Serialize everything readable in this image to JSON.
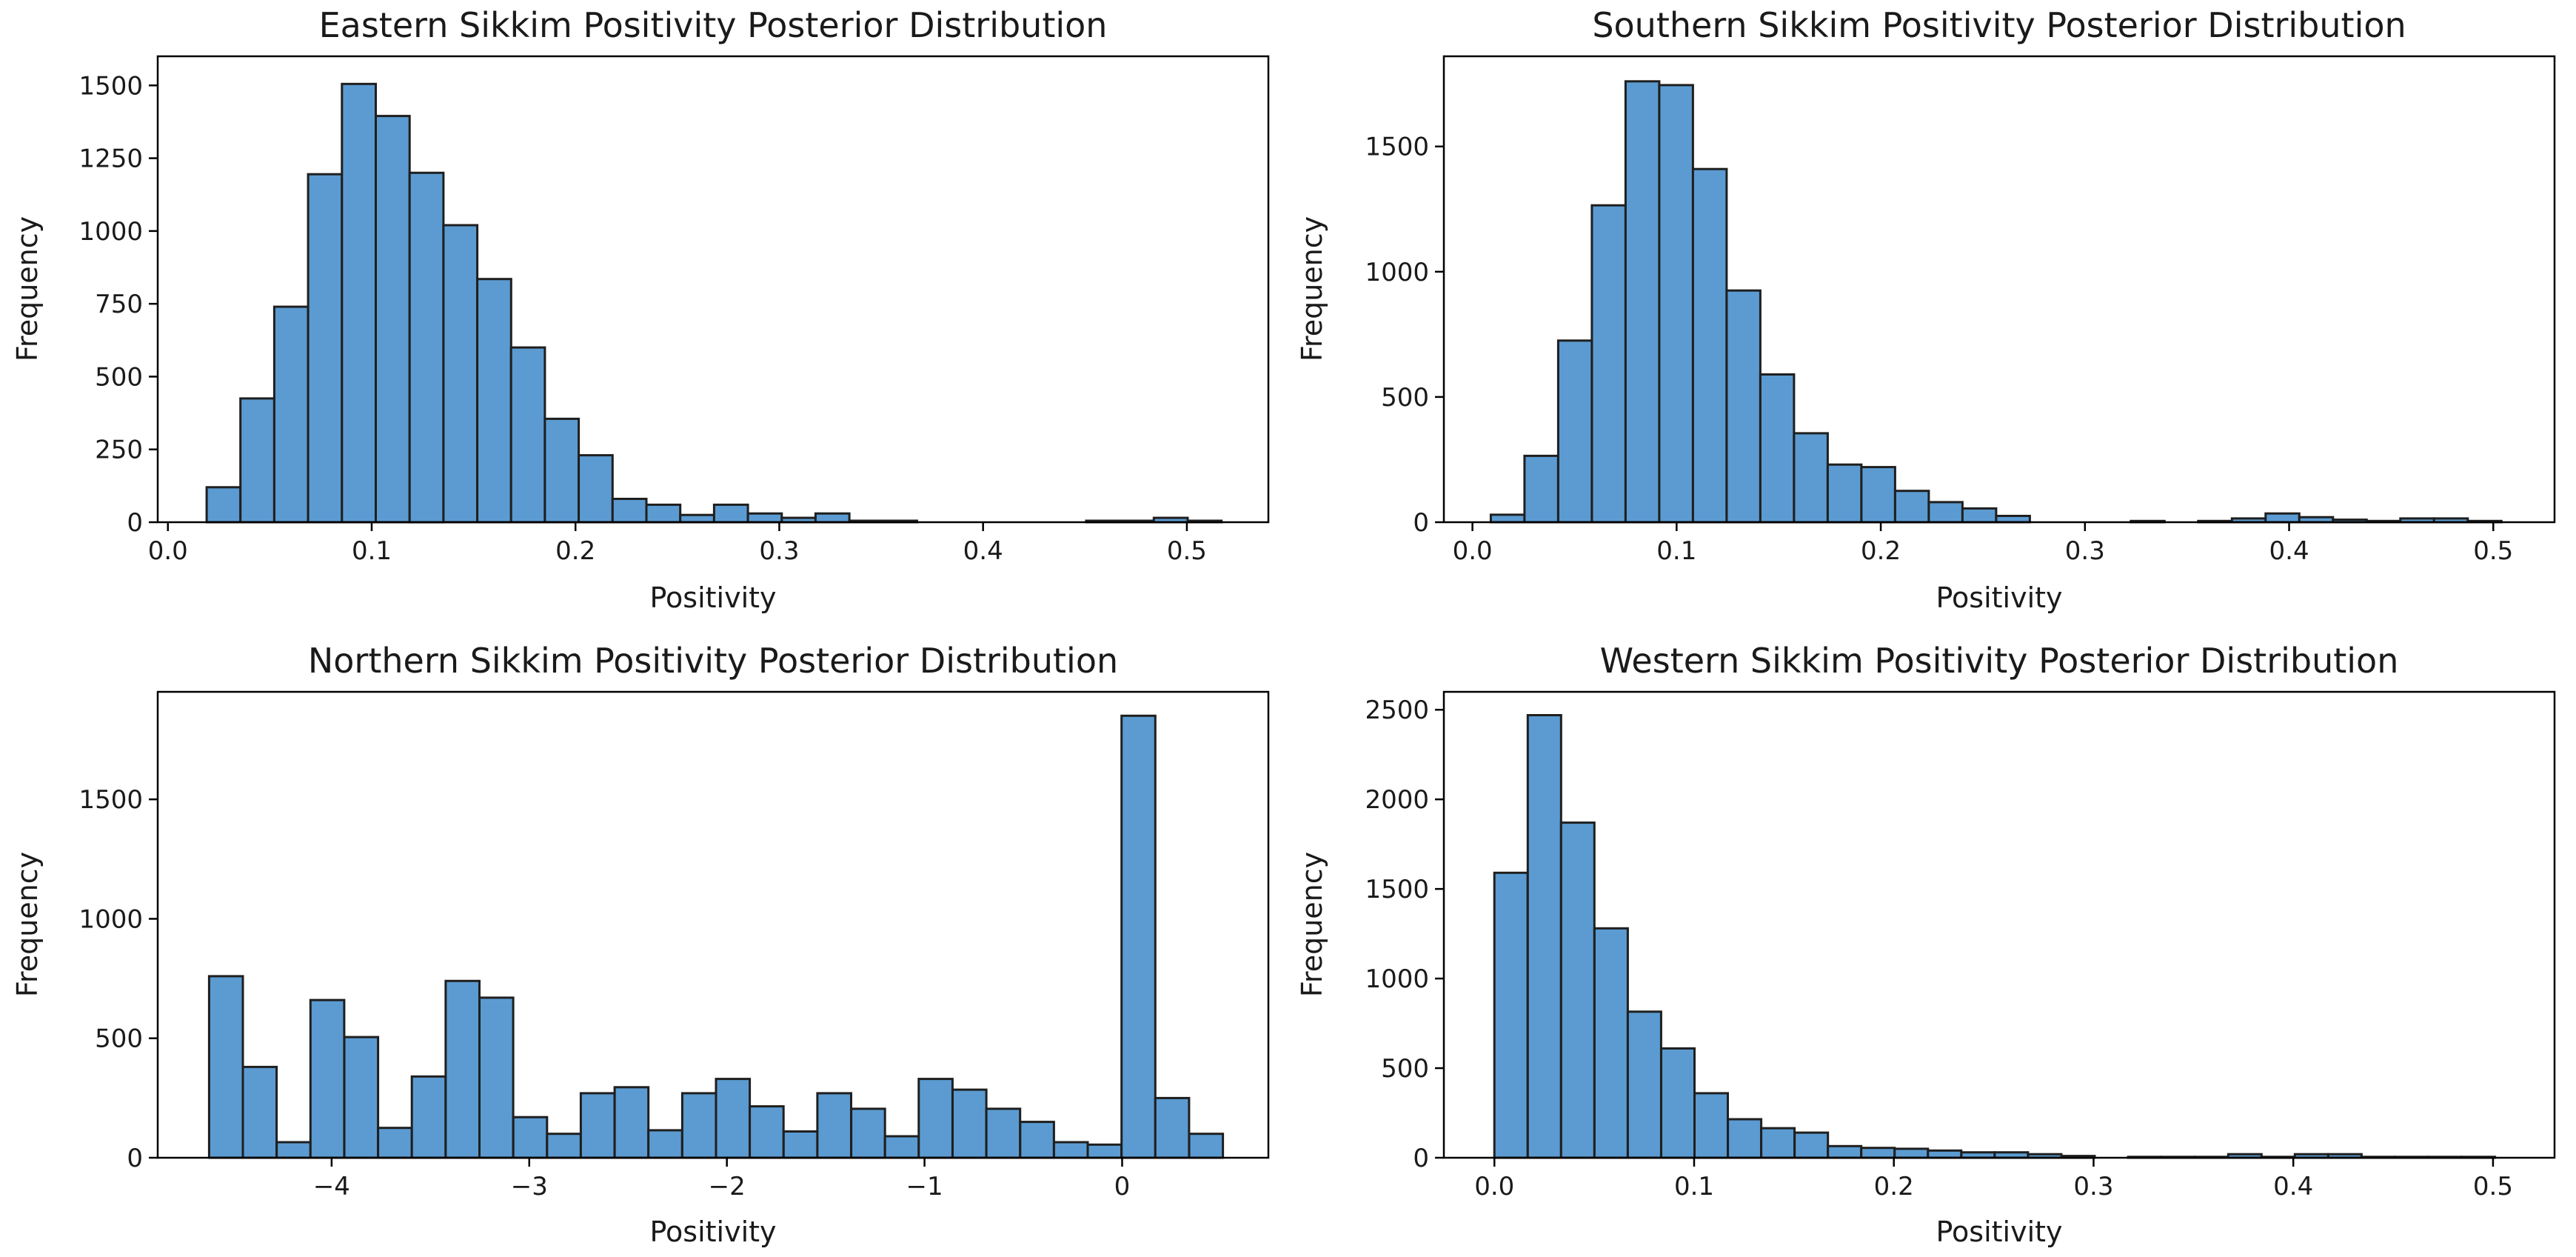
{
  "figure": {
    "background": "#ffffff",
    "bar_color": "#5b9bd1",
    "edge_color": "#1f1f1f"
  },
  "chart_data": [
    {
      "type": "bar",
      "title": "Eastern Sikkim Positivity Posterior Distribution",
      "xlabel": "Positivity",
      "ylabel": "Frequency",
      "xlim": [
        -0.005,
        0.54
      ],
      "ylim": [
        0,
        1600
      ],
      "xticks": [
        0.0,
        0.1,
        0.2,
        0.3,
        0.4,
        0.5
      ],
      "xtick_labels": [
        "0.0",
        "0.1",
        "0.2",
        "0.3",
        "0.4",
        "0.5"
      ],
      "yticks": [
        0,
        250,
        500,
        750,
        1000,
        1250,
        1500
      ],
      "ytick_labels": [
        "0",
        "250",
        "500",
        "750",
        "1000",
        "1250",
        "1500"
      ],
      "bin_start": 0.019,
      "bin_width": 0.0166,
      "values": [
        120,
        425,
        740,
        1195,
        1505,
        1395,
        1200,
        1020,
        835,
        600,
        355,
        230,
        80,
        60,
        25,
        60,
        30,
        15,
        30,
        5,
        5,
        0,
        0,
        0,
        0,
        0,
        5,
        5,
        15,
        5
      ]
    },
    {
      "type": "bar",
      "title": "Southern Sikkim Positivity Posterior Distribution",
      "xlabel": "Positivity",
      "ylabel": "Frequency",
      "xlim": [
        -0.014,
        0.53
      ],
      "ylim": [
        0,
        1860
      ],
      "xticks": [
        0.0,
        0.1,
        0.2,
        0.3,
        0.4,
        0.5
      ],
      "xtick_labels": [
        "0.0",
        "0.1",
        "0.2",
        "0.3",
        "0.4",
        "0.5"
      ],
      "yticks": [
        0,
        500,
        1000,
        1500
      ],
      "ytick_labels": [
        "0",
        "500",
        "1000",
        "1500"
      ],
      "bin_start": 0.009,
      "bin_width": 0.0165,
      "values": [
        30,
        265,
        725,
        1265,
        1760,
        1745,
        1410,
        925,
        590,
        355,
        230,
        220,
        125,
        80,
        55,
        25,
        0,
        0,
        0,
        5,
        0,
        5,
        15,
        35,
        20,
        10,
        5,
        15,
        15,
        5
      ]
    },
    {
      "type": "bar",
      "title": "Northern Sikkim Positivity Posterior Distribution",
      "xlabel": "Positivity",
      "ylabel": "Frequency",
      "xlim": [
        -4.88,
        0.74
      ],
      "ylim": [
        0,
        1950
      ],
      "xticks": [
        -4,
        -3,
        -2,
        -1,
        0
      ],
      "xtick_labels": [
        "−4",
        "−3",
        "−2",
        "−1",
        "0"
      ],
      "yticks": [
        0,
        500,
        1000,
        1500
      ],
      "ytick_labels": [
        "0",
        "500",
        "1000",
        "1500"
      ],
      "bin_start": -4.62,
      "bin_width": 0.171,
      "values": [
        760,
        380,
        65,
        660,
        505,
        125,
        340,
        740,
        670,
        170,
        100,
        270,
        295,
        115,
        270,
        330,
        215,
        110,
        270,
        205,
        90,
        330,
        285,
        205,
        150,
        65,
        55,
        1850,
        250,
        100
      ]
    },
    {
      "type": "bar",
      "title": "Western Sikkim Positivity Posterior Distribution",
      "xlabel": "Positivity",
      "ylabel": "Frequency",
      "xlim": [
        -0.0253,
        0.5308
      ],
      "ylim": [
        0,
        2600
      ],
      "xticks": [
        0.0,
        0.1,
        0.2,
        0.3,
        0.4,
        0.5
      ],
      "xtick_labels": [
        "0.0",
        "0.1",
        "0.2",
        "0.3",
        "0.4",
        "0.5"
      ],
      "yticks": [
        0,
        500,
        1000,
        1500,
        2000,
        2500
      ],
      "ytick_labels": [
        "0",
        "500",
        "1000",
        "1500",
        "2000",
        "2500"
      ],
      "bin_start": 0.0,
      "bin_width": 0.0167,
      "values": [
        1590,
        2470,
        1870,
        1280,
        815,
        610,
        360,
        215,
        165,
        140,
        65,
        55,
        50,
        40,
        30,
        30,
        20,
        10,
        0,
        5,
        5,
        5,
        20,
        5,
        20,
        20,
        5,
        5,
        5,
        5
      ]
    }
  ]
}
